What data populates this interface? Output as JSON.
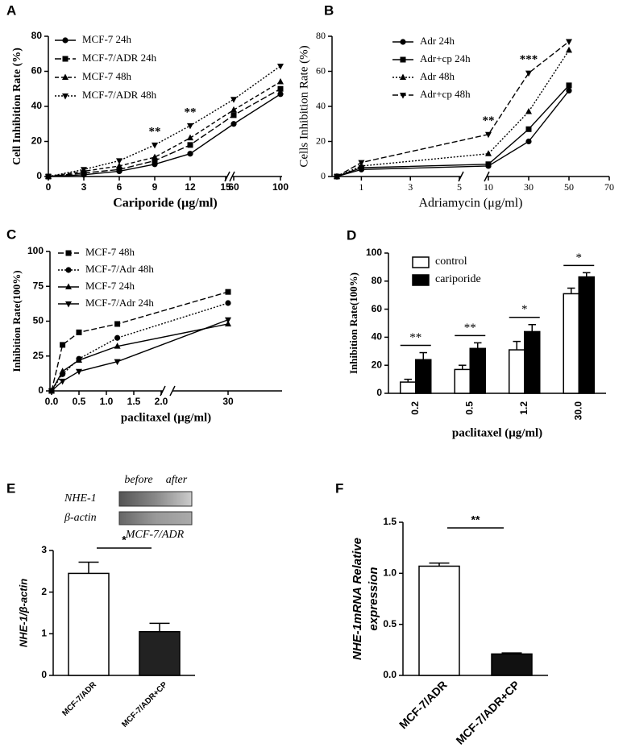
{
  "chart_data": [
    {
      "panel": "A",
      "type": "line",
      "xlabel": "Cariporide (μg/ml)",
      "ylabel": "Cell Inhibition Rate (%)",
      "x": [
        0,
        3,
        6,
        9,
        12,
        60,
        100
      ],
      "xlim": [
        0,
        100
      ],
      "xbreak": [
        15,
        60
      ],
      "xticks": [
        0,
        3,
        6,
        9,
        12,
        15,
        60,
        100
      ],
      "ylim": [
        0,
        80
      ],
      "yticks": [
        0,
        20,
        40,
        60,
        80
      ],
      "series": [
        {
          "name": "MCF-7 24h",
          "color": "#000000",
          "marker": "circle",
          "dash": "none",
          "values": [
            0,
            1,
            3,
            7,
            13,
            30,
            47
          ]
        },
        {
          "name": "MCF-7/ADR 24h",
          "color": "#000000",
          "marker": "square",
          "dash": "8,3",
          "values": [
            0,
            2,
            4,
            9,
            18,
            35,
            50
          ]
        },
        {
          "name": "MCF-7 48h",
          "color": "#000000",
          "marker": "triangle",
          "dash": "5,3",
          "values": [
            0,
            3,
            6,
            11,
            22,
            38,
            54
          ]
        },
        {
          "name": "MCF-7/ADR 48h",
          "color": "#000000",
          "marker": "triangle-down",
          "dash": "2,2",
          "values": [
            0,
            4,
            9,
            18,
            29,
            44,
            63
          ]
        }
      ],
      "annotations": [
        {
          "text": "**",
          "x": 9
        },
        {
          "text": "**",
          "x": 12
        }
      ]
    },
    {
      "panel": "B",
      "type": "line",
      "xlabel": "Adriamycin (μg/ml)",
      "ylabel": "Cells Inhibition Rate (%)",
      "x": [
        0,
        1,
        10,
        30,
        50
      ],
      "xlim": [
        0,
        70
      ],
      "xbreak": [
        5,
        10
      ],
      "xticks": [
        1,
        3,
        5,
        10,
        30,
        50,
        70
      ],
      "ylim": [
        0,
        80
      ],
      "yticks": [
        0,
        20,
        40,
        60,
        80
      ],
      "series": [
        {
          "name": "Adr  24h",
          "color": "#000000",
          "marker": "circle",
          "dash": "none",
          "values": [
            0,
            4,
            6,
            20,
            49
          ]
        },
        {
          "name": "Adr+cp 24h",
          "color": "#000000",
          "marker": "square",
          "dash": "none",
          "values": [
            0,
            5,
            7,
            27,
            52
          ]
        },
        {
          "name": "Adr  48h",
          "color": "#000000",
          "marker": "triangle",
          "dash": "2,2",
          "values": [
            0,
            6,
            13,
            37,
            72
          ]
        },
        {
          "name": "Adr+cp 48h",
          "color": "#000000",
          "marker": "triangle-down",
          "dash": "7,3",
          "values": [
            0,
            8,
            24,
            59,
            77
          ]
        }
      ],
      "annotations": [
        {
          "text": "**",
          "x": 10
        },
        {
          "text": "***",
          "x": 30
        }
      ]
    },
    {
      "panel": "C",
      "type": "line",
      "xlabel": "paclitaxel (μg/ml)",
      "ylabel": "Inhibition Rate(100%)",
      "x": [
        0,
        0.2,
        0.5,
        1.2,
        30
      ],
      "xlim": [
        0,
        40
      ],
      "xbreak": [
        2,
        20
      ],
      "xticks": [
        {
          "value": 0,
          "label": "0.0"
        },
        0.5,
        {
          "value": 1,
          "label": "1.0"
        },
        1.5,
        {
          "value": 2,
          "label": "2.0"
        },
        30
      ],
      "ylim": [
        0,
        100
      ],
      "yticks": [
        0,
        25,
        50,
        75,
        100
      ],
      "series": [
        {
          "name": "MCF-7  48h",
          "color": "#000000",
          "marker": "square",
          "dash": "7,3",
          "values": [
            0,
            33,
            42,
            48,
            71
          ]
        },
        {
          "name": "MCF-7/Adr 48h",
          "color": "#000000",
          "marker": "circle",
          "dash": "2,2",
          "values": [
            0,
            12,
            23,
            38,
            63
          ]
        },
        {
          "name": "MCF-7 24h",
          "color": "#000000",
          "marker": "triangle",
          "dash": "none",
          "values": [
            0,
            14,
            22,
            32,
            48
          ]
        },
        {
          "name": "MCF-7/Adr 24h",
          "color": "#000000",
          "marker": "triangle-down",
          "dash": "none",
          "values": [
            0,
            7,
            14,
            21,
            51
          ]
        }
      ]
    },
    {
      "panel": "D",
      "type": "bar",
      "xlabel": "paclitaxel (μg/ml)",
      "ylabel": "Inhibition Rate(100%)",
      "categories": [
        "0.2",
        "0.5",
        "1.2",
        "30.0"
      ],
      "ylim": [
        0,
        100
      ],
      "yticks": [
        0,
        20,
        40,
        60,
        80,
        100
      ],
      "series": [
        {
          "name": "control",
          "color": "#ffffff",
          "values": [
            8,
            17,
            31,
            71
          ],
          "errors": [
            2,
            3,
            6,
            4
          ]
        },
        {
          "name": "cariporide",
          "color": "#000000",
          "values": [
            24,
            32,
            44,
            83
          ],
          "errors": [
            5,
            4,
            5,
            3
          ]
        }
      ],
      "annotations": [
        "**",
        "**",
        "*",
        "*"
      ]
    },
    {
      "panel": "E",
      "type": "bar",
      "ylabel": "NHE-1/β-actin",
      "blot": {
        "lanes": [
          "before",
          "after"
        ],
        "rows": [
          "NHE-1",
          "β-actin"
        ],
        "caption": "MCF-7/ADR"
      },
      "categories": [
        "MCF-7/ADR",
        "MCF-7/ADR+CP"
      ],
      "values": [
        2.45,
        1.05
      ],
      "errors": [
        0.27,
        0.2
      ],
      "colors": [
        "#ffffff",
        "#222222"
      ],
      "ylim": [
        0,
        3
      ],
      "yticks": [
        0,
        1,
        2,
        3
      ],
      "annotation": "*"
    },
    {
      "panel": "F",
      "type": "bar",
      "ylabel": [
        "NHE-1mRNA Relative",
        "expression"
      ],
      "categories": [
        "MCF-7/ADR",
        "MCF-7/ADR+CP"
      ],
      "values": [
        1.07,
        0.21
      ],
      "errors": [
        0.03,
        0.01
      ],
      "colors": [
        "#ffffff",
        "#111111"
      ],
      "ylim": [
        0,
        1.5
      ],
      "yticks": [
        {
          "value": 0,
          "label": "0.0"
        },
        0.5,
        {
          "value": 1,
          "label": "1.0"
        },
        1.5
      ],
      "annotation": "**"
    }
  ]
}
